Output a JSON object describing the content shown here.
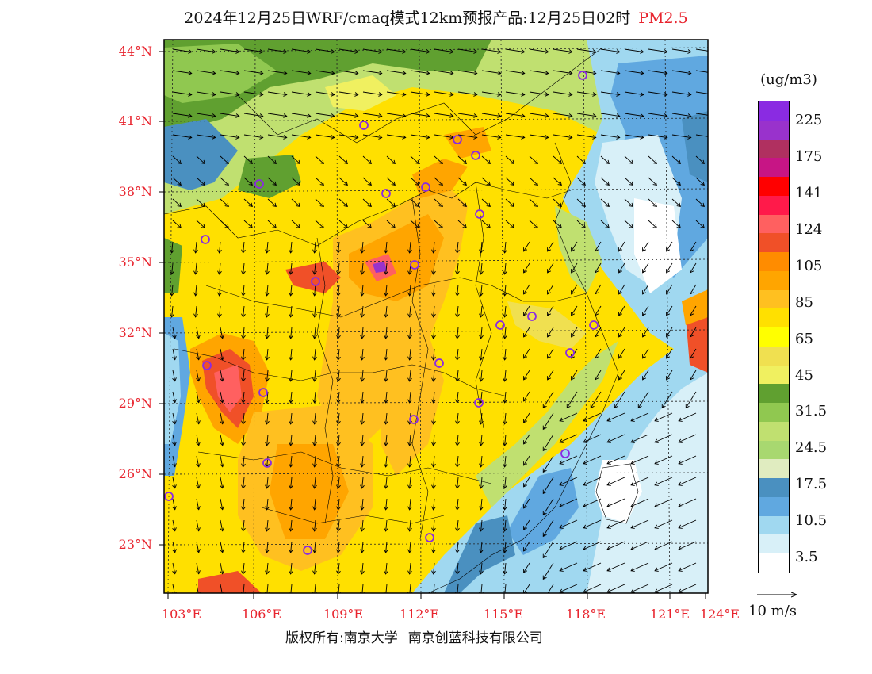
{
  "title": {
    "main": "2024年12月25日WRF/cmaq模式12km预报产品:12月25日02时",
    "pollutant": "PM2.5"
  },
  "lat_labels": [
    "44°N",
    "41°N",
    "38°N",
    "35°N",
    "32°N",
    "29°N",
    "26°N",
    "23°N"
  ],
  "lon_labels": [
    "103°E",
    "106°E",
    "109°E",
    "112°E",
    "115°E",
    "118°E",
    "121°E",
    "124°E"
  ],
  "legend": {
    "unit": "(ug/m3)",
    "labels": [
      "225",
      "175",
      "141",
      "124",
      "105",
      "85",
      "65",
      "45",
      "31.5",
      "24.5",
      "17.5",
      "10.5",
      "3.5"
    ],
    "colors": [
      "#8a2be2",
      "#9932cc",
      "#b03060",
      "#c71585",
      "#ff0000",
      "#ff1a4a",
      "#ff6060",
      "#f05028",
      "#ff8c00",
      "#ffa500",
      "#ffc020",
      "#ffe000",
      "#ffff00",
      "#f0e050",
      "#f0f060",
      "#60a030",
      "#90c850",
      "#c0e070",
      "#a8d870",
      "#e0ecc0",
      "#4a90c0",
      "#60a8e0",
      "#a0d8f0",
      "#d8f0f8",
      "#ffffff"
    ]
  },
  "wind_reference": {
    "label": "10 m/s"
  },
  "footer": {
    "left": "版权所有:南京大学",
    "right": "南京创蓝科技有限公司"
  },
  "colors": {
    "accent_red": "#e8242e",
    "circle_marker": "#8a2be2"
  }
}
